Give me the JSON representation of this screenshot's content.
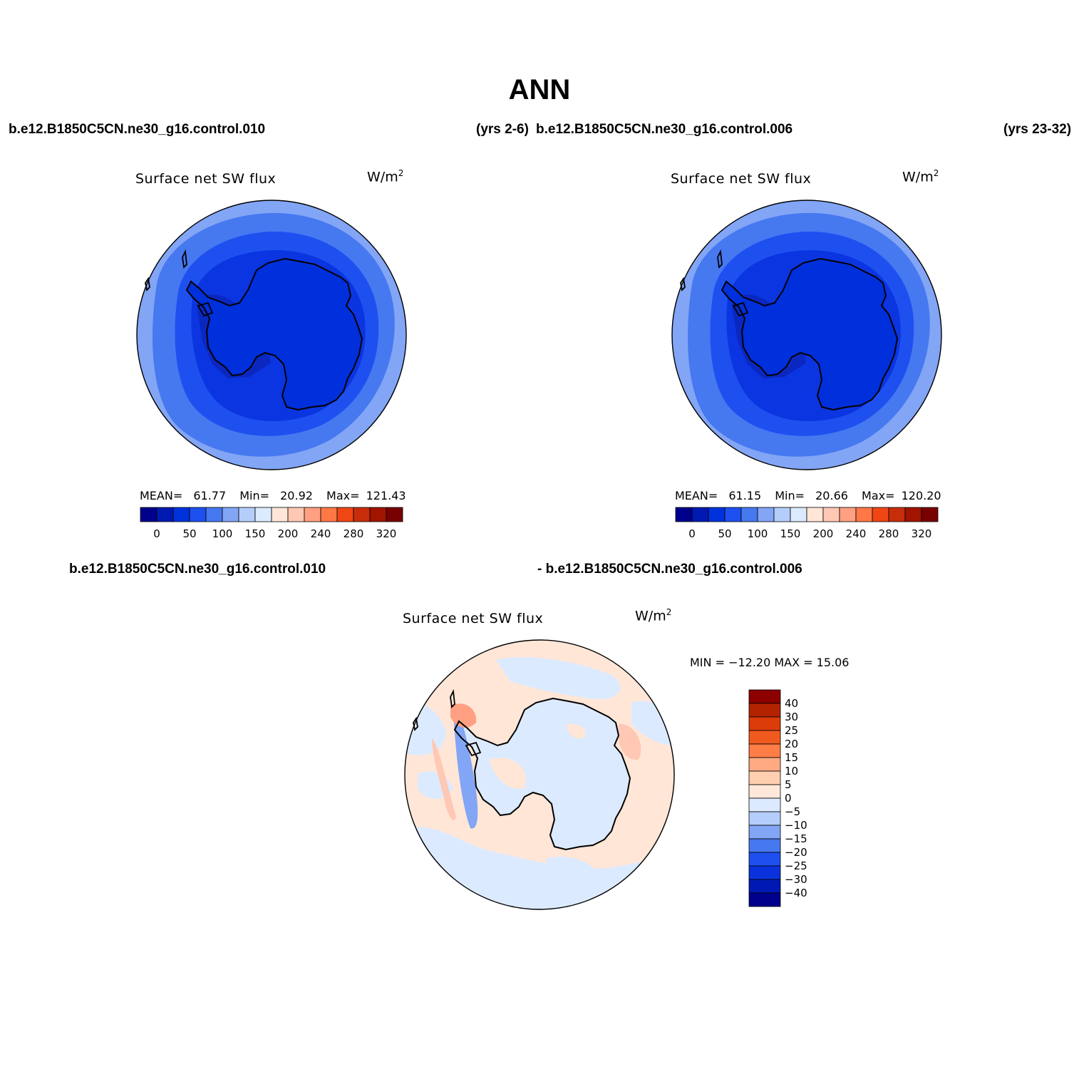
{
  "figure": {
    "title": "ANN"
  },
  "header": {
    "case_left": "b.e12.B1850C5CN.ne30_g16.control.010",
    "years_left": "(yrs 2-6)",
    "case_right": "b.e12.B1850C5CN.ne30_g16.control.006",
    "years_right": "(yrs 23-32)"
  },
  "diff_header": {
    "case_a": "b.e12.B1850C5CN.ne30_g16.control.010",
    "case_b": "- b.e12.B1850C5CN.ne30_g16.control.006"
  },
  "panels": [
    {
      "variable": "Surface net SW flux",
      "units_base": "W/m",
      "units_exp": "2",
      "stats": {
        "mean_label": "MEAN=",
        "mean": "61.77",
        "min_label": "Min=",
        "min": "20.92",
        "max_label": "Max=",
        "max": "121.43"
      }
    },
    {
      "variable": "Surface net SW flux",
      "units_base": "W/m",
      "units_exp": "2",
      "stats": {
        "mean_label": "MEAN=",
        "mean": "61.15",
        "min_label": "Min=",
        "min": "20.66",
        "max_label": "Max=",
        "max": "120.20"
      }
    },
    {
      "variable": "Surface net SW flux",
      "units_base": "W/m",
      "units_exp": "2",
      "stats": {
        "text": "MIN = −12.20 MAX =  15.06"
      }
    }
  ],
  "abs_colorbar": {
    "orientation": "horizontal",
    "colors": [
      "#00008c",
      "#0019b0",
      "#0032dc",
      "#1e50f0",
      "#4678f0",
      "#82a5f5",
      "#b4cdfa",
      "#dceaff",
      "#ffe6d7",
      "#ffc8b4",
      "#ffa082",
      "#ff7846",
      "#f04614",
      "#c82d0a",
      "#a01400",
      "#780000"
    ],
    "tick_labels": [
      "0",
      "50",
      "100",
      "150",
      "200",
      "240",
      "280",
      "320"
    ]
  },
  "diff_colorbar": {
    "orientation": "vertical",
    "colors_top_to_bottom": [
      "#8c0000",
      "#b42300",
      "#dc3c0a",
      "#f05a1e",
      "#ff7d46",
      "#ffaa82",
      "#ffcfaf",
      "#ffe8d9",
      "#dceaff",
      "#b4cdfa",
      "#82a5f5",
      "#4678f0",
      "#1e50f0",
      "#0a32dc",
      "#0019b4",
      "#00008c"
    ],
    "tick_labels_top_to_bottom": [
      "40",
      "30",
      "25",
      "20",
      "15",
      "10",
      "5",
      "0",
      "−5",
      "−10",
      "−15",
      "−20",
      "−25",
      "−30",
      "−40"
    ]
  },
  "map_colors": {
    "ocean_outer": "#82a5f5",
    "ocean_mid": "#4678f0",
    "ocean_inner": "#1e50f0",
    "coastal": "#0a35e0",
    "peninsula_dark": "#0a28c0",
    "interior": "#0030dc",
    "diff_background": "#ffe6d7",
    "diff_negative": "#dceaff",
    "diff_negative_strong": "#82a5f5",
    "diff_positive": "#ffc8b4",
    "diff_positive_strong": "#ffa082",
    "coastline": "#000000"
  }
}
